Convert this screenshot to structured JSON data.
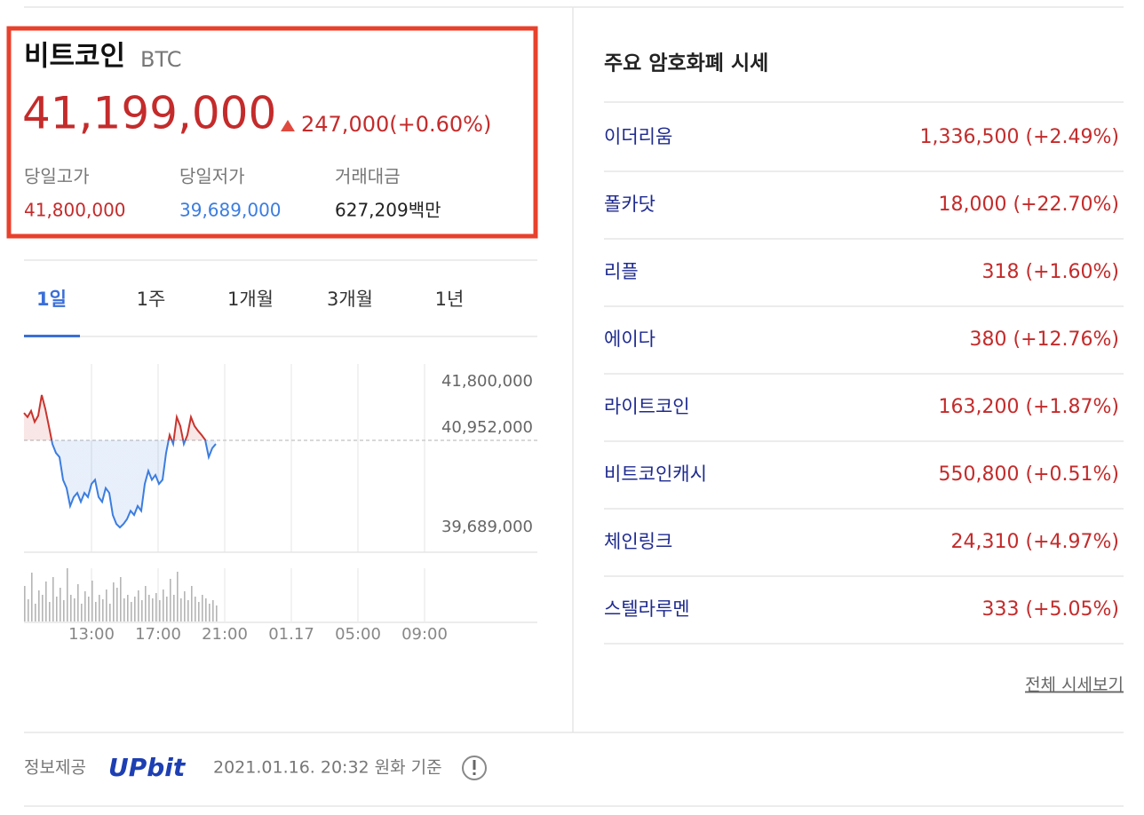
{
  "coin": {
    "name": "비트코인",
    "symbol": "BTC",
    "price": "41,199,000",
    "change": "247,000(+0.60%)"
  },
  "stats": [
    {
      "label": "당일고가",
      "value": "41,800,000"
    },
    {
      "label": "당일저가",
      "value": "39,689,000"
    },
    {
      "label": "거래대금",
      "value": "627,209백만"
    }
  ],
  "tabs": [
    "1일",
    "1주",
    "1개월",
    "3개월",
    "1년"
  ],
  "chart_data": {
    "type": "line",
    "values": [
      41350000,
      41290000,
      41380000,
      41220000,
      41310000,
      41610000,
      41410000,
      41160000,
      40900000,
      40770000,
      40710000,
      40380000,
      40260000,
      40000000,
      40130000,
      40190000,
      40060000,
      40190000,
      40130000,
      40320000,
      40380000,
      40130000,
      40060000,
      40260000,
      40190000,
      39870000,
      39740000,
      39689000,
      39740000,
      39810000,
      39930000,
      39870000,
      40000000,
      39930000,
      40320000,
      40510000,
      40380000,
      40450000,
      40320000,
      40380000,
      40770000,
      41030000,
      40900000,
      41290000,
      41160000,
      40900000,
      41030000,
      41290000,
      41160000,
      41090000,
      41030000,
      40960000,
      40710000,
      40840000,
      40900000
    ],
    "volume": [
      40,
      25,
      55,
      20,
      35,
      30,
      45,
      22,
      50,
      28,
      38,
      24,
      60,
      30,
      26,
      42,
      20,
      34,
      28,
      46,
      22,
      30,
      25,
      36,
      20,
      44,
      38,
      50,
      26,
      30,
      22,
      28,
      35,
      24,
      40,
      30,
      26,
      32,
      24,
      36,
      28,
      48,
      30,
      56,
      26,
      34,
      24,
      40,
      28,
      22,
      30,
      26,
      20,
      24,
      18
    ],
    "ylim": [
      39330000,
      42060000
    ],
    "yticks": [
      {
        "value": 41800000,
        "label": "41,800,000"
      },
      {
        "value": 39689000,
        "label": "39,689,000"
      }
    ],
    "prev_close": {
      "value": 40952000,
      "label": "40,952,000"
    },
    "xtick_labels": [
      "13:00",
      "17:00",
      "21:00",
      "01.17",
      "05:00",
      "09:00"
    ],
    "up_color": "#c9342d",
    "down_color": "#3b7de0",
    "volume_color": "#b5b5b5"
  },
  "market": {
    "title": "주요 암호화폐 시세",
    "rows": [
      {
        "name": "이더리움",
        "value": "1,336,500 (+2.49%)"
      },
      {
        "name": "폴카닷",
        "value": "18,000 (+22.70%)"
      },
      {
        "name": "리플",
        "value": "318 (+1.60%)"
      },
      {
        "name": "에이다",
        "value": "380 (+12.76%)"
      },
      {
        "name": "라이트코인",
        "value": "163,200 (+1.87%)"
      },
      {
        "name": "비트코인캐시",
        "value": "550,800 (+0.51%)"
      },
      {
        "name": "체인링크",
        "value": "24,310 (+4.97%)"
      },
      {
        "name": "스텔라루멘",
        "value": "333 (+5.05%)"
      }
    ],
    "more": "전체 시세보기"
  },
  "footer": {
    "provider_label": "정보제공",
    "provider": "UPbit",
    "timestamp": "2021.01.16. 20:32 원화 기준"
  }
}
